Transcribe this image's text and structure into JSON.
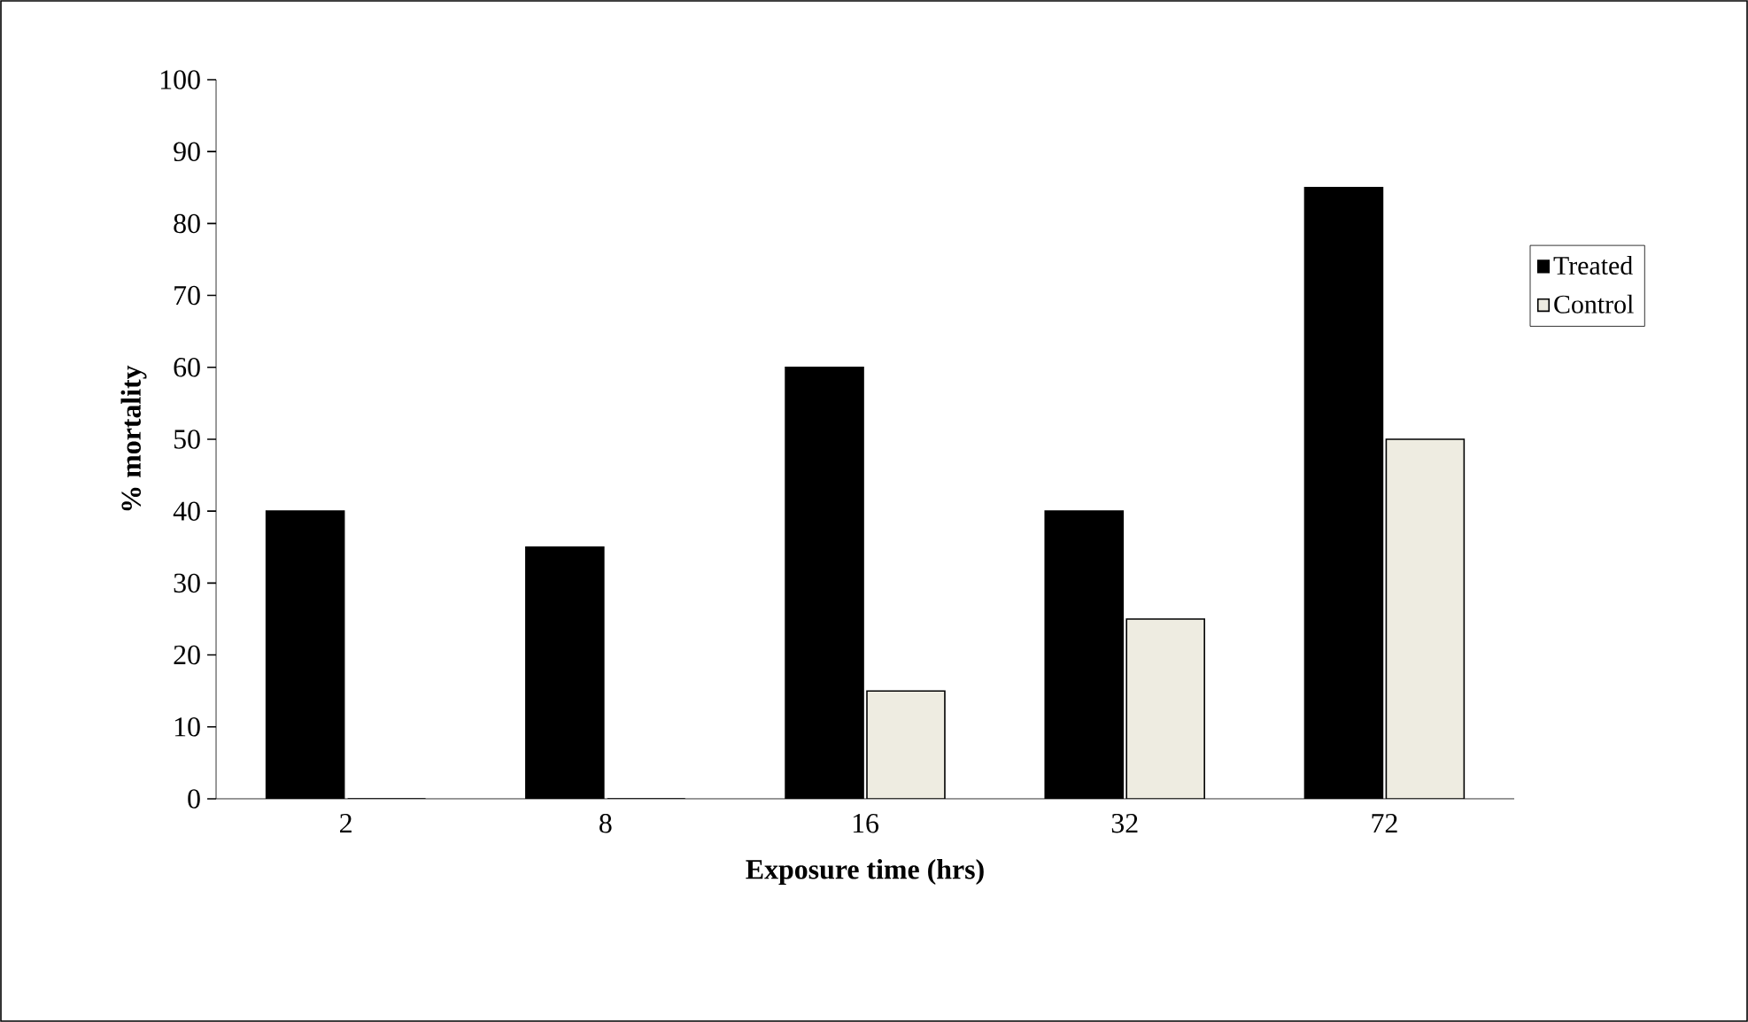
{
  "chart_data": {
    "type": "bar",
    "xlabel": "Exposure time (hrs)",
    "ylabel": "% mortality",
    "categories": [
      "2",
      "8",
      "16",
      "32",
      "72"
    ],
    "series": [
      {
        "name": "Treated",
        "color": "#000000",
        "values": [
          40,
          35,
          60,
          40,
          85
        ]
      },
      {
        "name": "Control",
        "color": "#eeece1",
        "values": [
          0,
          0,
          15,
          25,
          50
        ]
      }
    ],
    "ylim": [
      0,
      100
    ],
    "yticks": [
      0,
      10,
      20,
      30,
      40,
      50,
      60,
      70,
      80,
      90,
      100
    ],
    "legend": "right"
  }
}
